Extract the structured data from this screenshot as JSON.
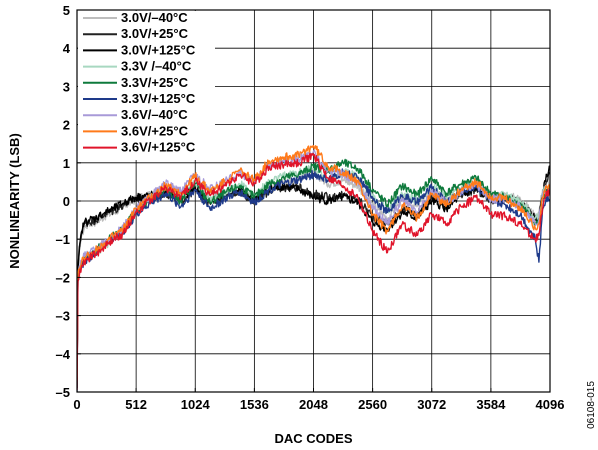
{
  "figure_id": "06108-015",
  "chart_data": {
    "type": "line",
    "title": "",
    "xlabel": "DAC CODES",
    "ylabel": "NONLINEARITY (LSB)",
    "xlim": [
      0,
      4096
    ],
    "ylim": [
      -5,
      5
    ],
    "xticks": [
      0,
      512,
      1024,
      1536,
      2048,
      2560,
      3072,
      3584,
      4096
    ],
    "xtick_labels": [
      "0",
      "512",
      "1024",
      "1536",
      "2048",
      "2560",
      "3072",
      "3584",
      "4096"
    ],
    "yticks": [
      -5,
      -4,
      -3,
      -2,
      -1,
      0,
      1,
      2,
      3,
      4,
      5
    ],
    "ytick_labels": [
      "–5",
      "–4",
      "–3",
      "–2",
      "–1",
      "0",
      "1",
      "2",
      "3",
      "4",
      "5"
    ],
    "grid": true,
    "legend_position": "top-left",
    "x": [
      0,
      8,
      20,
      40,
      64,
      100,
      160,
      240,
      320,
      400,
      512,
      640,
      768,
      900,
      1024,
      1150,
      1280,
      1408,
      1536,
      1664,
      1792,
      1920,
      2048,
      2176,
      2304,
      2432,
      2560,
      2688,
      2816,
      2944,
      3072,
      3200,
      3328,
      3456,
      3584,
      3712,
      3840,
      3968,
      4000,
      4032,
      4064,
      4096
    ],
    "series": [
      {
        "name": "3.0V/–40°C",
        "color": "#bdbdbd",
        "values": [
          -4.7,
          -1.7,
          -1.2,
          -0.9,
          -0.7,
          -0.6,
          -0.55,
          -0.4,
          -0.3,
          -0.15,
          0.05,
          0.15,
          0.25,
          0.1,
          0.4,
          0.05,
          0.2,
          0.3,
          0.1,
          0.35,
          0.5,
          0.6,
          0.75,
          0.45,
          0.55,
          0.4,
          -0.1,
          -0.45,
          0.05,
          -0.15,
          0.3,
          0.0,
          0.3,
          0.45,
          0.1,
          0.15,
          0.05,
          -0.4,
          -0.3,
          0.3,
          0.55,
          0.35
        ]
      },
      {
        "name": "3.0V/+25°C",
        "color": "#222222",
        "values": [
          -4.8,
          -1.8,
          -1.2,
          -0.8,
          -0.6,
          -0.55,
          -0.5,
          -0.35,
          -0.25,
          -0.1,
          0.05,
          0.1,
          0.2,
          0.0,
          0.3,
          -0.05,
          0.15,
          0.25,
          0.0,
          0.25,
          0.35,
          0.35,
          0.2,
          0.1,
          0.15,
          0.05,
          -0.4,
          -0.6,
          -0.2,
          -0.35,
          0.1,
          -0.15,
          0.15,
          0.3,
          0.0,
          0.05,
          -0.1,
          -0.5,
          -0.45,
          0.1,
          0.5,
          0.7
        ]
      },
      {
        "name": "3.0V/+125°C",
        "color": "#000000",
        "values": [
          -4.9,
          -1.9,
          -1.3,
          -0.8,
          -0.55,
          -0.5,
          -0.45,
          -0.3,
          -0.2,
          -0.05,
          0.1,
          0.15,
          0.25,
          0.05,
          0.35,
          0.0,
          0.2,
          0.3,
          0.05,
          0.3,
          0.4,
          0.3,
          0.1,
          0.0,
          0.1,
          -0.05,
          -0.55,
          -0.75,
          -0.3,
          -0.45,
          0.0,
          -0.2,
          0.15,
          0.3,
          0.05,
          0.1,
          -0.05,
          -0.45,
          -0.4,
          0.2,
          0.7,
          0.9
        ]
      },
      {
        "name": "3.3V /–40°C",
        "color": "#a8d8c0",
        "values": [
          -4.8,
          -2.0,
          -1.8,
          -1.6,
          -1.5,
          -1.4,
          -1.35,
          -1.2,
          -0.95,
          -0.8,
          -0.3,
          0.1,
          0.35,
          0.15,
          0.5,
          0.05,
          0.25,
          0.45,
          0.15,
          0.5,
          0.65,
          0.75,
          0.85,
          0.6,
          0.75,
          0.65,
          0.1,
          -0.25,
          0.2,
          0.0,
          0.4,
          0.1,
          0.35,
          0.55,
          0.15,
          0.15,
          0.0,
          -0.45,
          -0.35,
          0.2,
          0.35,
          0.3
        ]
      },
      {
        "name": "3.3V/+25°C",
        "color": "#0e7a3c",
        "values": [
          -4.9,
          -2.0,
          -1.85,
          -1.65,
          -1.55,
          -1.45,
          -1.3,
          -1.1,
          -0.9,
          -0.75,
          -0.25,
          0.05,
          0.3,
          0.0,
          0.45,
          -0.05,
          0.2,
          0.4,
          0.1,
          0.45,
          0.6,
          0.7,
          0.9,
          0.8,
          1.0,
          0.85,
          0.3,
          -0.1,
          0.4,
          0.15,
          0.6,
          0.2,
          0.45,
          0.6,
          0.2,
          0.1,
          -0.1,
          -0.6,
          -0.5,
          0.05,
          0.3,
          0.2
        ]
      },
      {
        "name": "3.3V/+125°C",
        "color": "#1e3a8a",
        "values": [
          -5.0,
          -2.0,
          -1.9,
          -1.7,
          -1.6,
          -1.5,
          -1.35,
          -1.15,
          -0.95,
          -0.8,
          -0.35,
          -0.05,
          0.2,
          -0.15,
          0.3,
          -0.2,
          0.05,
          0.25,
          -0.05,
          0.3,
          0.45,
          0.55,
          0.7,
          0.55,
          0.75,
          0.6,
          0.1,
          -0.3,
          0.15,
          -0.05,
          0.35,
          0.0,
          0.25,
          0.4,
          0.0,
          -0.1,
          -0.35,
          -1.0,
          -1.6,
          -0.2,
          0.1,
          0.05
        ]
      },
      {
        "name": "3.6V/–40°C",
        "color": "#a89ad8",
        "values": [
          -4.6,
          -1.9,
          -1.7,
          -1.55,
          -1.45,
          -1.35,
          -1.25,
          -1.1,
          -0.9,
          -0.7,
          -0.2,
          0.15,
          0.45,
          0.25,
          0.7,
          0.3,
          0.5,
          0.75,
          0.5,
          0.95,
          1.05,
          1.1,
          1.3,
          0.8,
          0.7,
          0.5,
          -0.2,
          -0.55,
          0.0,
          -0.3,
          0.25,
          -0.05,
          0.25,
          0.45,
          0.05,
          0.05,
          -0.15,
          -0.6,
          -0.5,
          0.15,
          0.35,
          0.25
        ]
      },
      {
        "name": "3.6V/+25°C",
        "color": "#ff7a1a",
        "values": [
          -4.7,
          -1.95,
          -1.8,
          -1.6,
          -1.5,
          -1.4,
          -1.3,
          -1.1,
          -0.9,
          -0.75,
          -0.2,
          0.1,
          0.4,
          0.2,
          0.65,
          0.25,
          0.5,
          0.8,
          0.55,
          1.05,
          1.15,
          1.2,
          1.45,
          0.9,
          0.75,
          0.5,
          -0.35,
          -0.8,
          -0.1,
          -0.45,
          0.2,
          -0.1,
          0.3,
          0.5,
          0.1,
          0.05,
          -0.2,
          -0.7,
          -0.6,
          0.1,
          0.4,
          0.3
        ]
      },
      {
        "name": "3.6V/+125°C",
        "color": "#e0142a",
        "values": [
          -4.95,
          -2.1,
          -1.95,
          -1.7,
          -1.6,
          -1.5,
          -1.4,
          -1.2,
          -1.0,
          -0.85,
          -0.3,
          0.05,
          0.35,
          0.1,
          0.55,
          0.15,
          0.4,
          0.7,
          0.45,
          0.9,
          0.95,
          1.0,
          1.2,
          0.6,
          0.4,
          0.1,
          -0.8,
          -1.35,
          -0.6,
          -0.9,
          -0.35,
          -0.6,
          -0.15,
          0.1,
          -0.35,
          -0.4,
          -0.6,
          -1.0,
          -0.9,
          -0.2,
          0.25,
          0.2
        ]
      }
    ]
  }
}
